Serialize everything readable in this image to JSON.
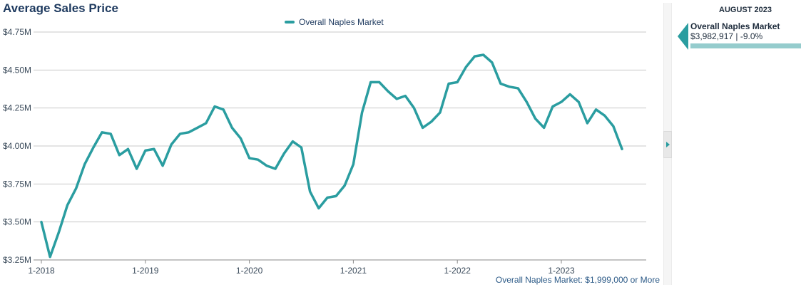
{
  "title": "Average Sales Price",
  "footnote": "Overall Naples Market: $1,999,000 or More",
  "colors": {
    "series": "#2a9da0",
    "series_light": "#95cccd",
    "title": "#1e3a5f",
    "grid": "#c9c9c9"
  },
  "side_panel": {
    "month": "AUGUST 2023",
    "series_name": "Overall Naples Market",
    "value_text": "$3,982,917 | -9.0%"
  },
  "chart_data": {
    "type": "line",
    "title": "Average Sales Price",
    "xlabel": "",
    "ylabel": "",
    "ylim": [
      3250000,
      4750000
    ],
    "grid": "horizontal",
    "legend_position": "top-center",
    "y_ticks": [
      {
        "value": 4750000,
        "label": "$4.75M"
      },
      {
        "value": 4500000,
        "label": "$4.50M"
      },
      {
        "value": 4250000,
        "label": "$4.25M"
      },
      {
        "value": 4000000,
        "label": "$4.00M"
      },
      {
        "value": 3750000,
        "label": "$3.75M"
      },
      {
        "value": 3500000,
        "label": "$3.50M"
      },
      {
        "value": 3250000,
        "label": "$3.25M"
      }
    ],
    "x_ticks": [
      "1-2018",
      "1-2019",
      "1-2020",
      "1-2021",
      "1-2022",
      "1-2023"
    ],
    "x": [
      "1-2018",
      "2-2018",
      "3-2018",
      "4-2018",
      "5-2018",
      "6-2018",
      "7-2018",
      "8-2018",
      "9-2018",
      "10-2018",
      "11-2018",
      "12-2018",
      "1-2019",
      "2-2019",
      "3-2019",
      "4-2019",
      "5-2019",
      "6-2019",
      "7-2019",
      "8-2019",
      "9-2019",
      "10-2019",
      "11-2019",
      "12-2019",
      "1-2020",
      "2-2020",
      "3-2020",
      "4-2020",
      "5-2020",
      "6-2020",
      "7-2020",
      "8-2020",
      "9-2020",
      "10-2020",
      "11-2020",
      "12-2020",
      "1-2021",
      "2-2021",
      "3-2021",
      "4-2021",
      "5-2021",
      "6-2021",
      "7-2021",
      "8-2021",
      "9-2021",
      "10-2021",
      "11-2021",
      "12-2021",
      "1-2022",
      "2-2022",
      "3-2022",
      "4-2022",
      "5-2022",
      "6-2022",
      "7-2022",
      "8-2022",
      "9-2022",
      "10-2022",
      "11-2022",
      "12-2022",
      "1-2023",
      "2-2023",
      "3-2023",
      "4-2023",
      "5-2023",
      "6-2023",
      "7-2023",
      "8-2023"
    ],
    "series": [
      {
        "name": "Overall Naples Market",
        "values": [
          3500000,
          3270000,
          3430000,
          3610000,
          3720000,
          3880000,
          3990000,
          4090000,
          4080000,
          3940000,
          3980000,
          3850000,
          3970000,
          3980000,
          3870000,
          4010000,
          4080000,
          4090000,
          4120000,
          4150000,
          4260000,
          4240000,
          4120000,
          4050000,
          3920000,
          3910000,
          3870000,
          3850000,
          3950000,
          4030000,
          3990000,
          3700000,
          3590000,
          3660000,
          3670000,
          3740000,
          3880000,
          4220000,
          4420000,
          4420000,
          4360000,
          4310000,
          4330000,
          4250000,
          4120000,
          4160000,
          4220000,
          4410000,
          4420000,
          4520000,
          4590000,
          4600000,
          4550000,
          4410000,
          4390000,
          4380000,
          4290000,
          4180000,
          4120000,
          4260000,
          4290000,
          4340000,
          4290000,
          4150000,
          4240000,
          4200000,
          4130000,
          3980000
        ]
      }
    ]
  }
}
